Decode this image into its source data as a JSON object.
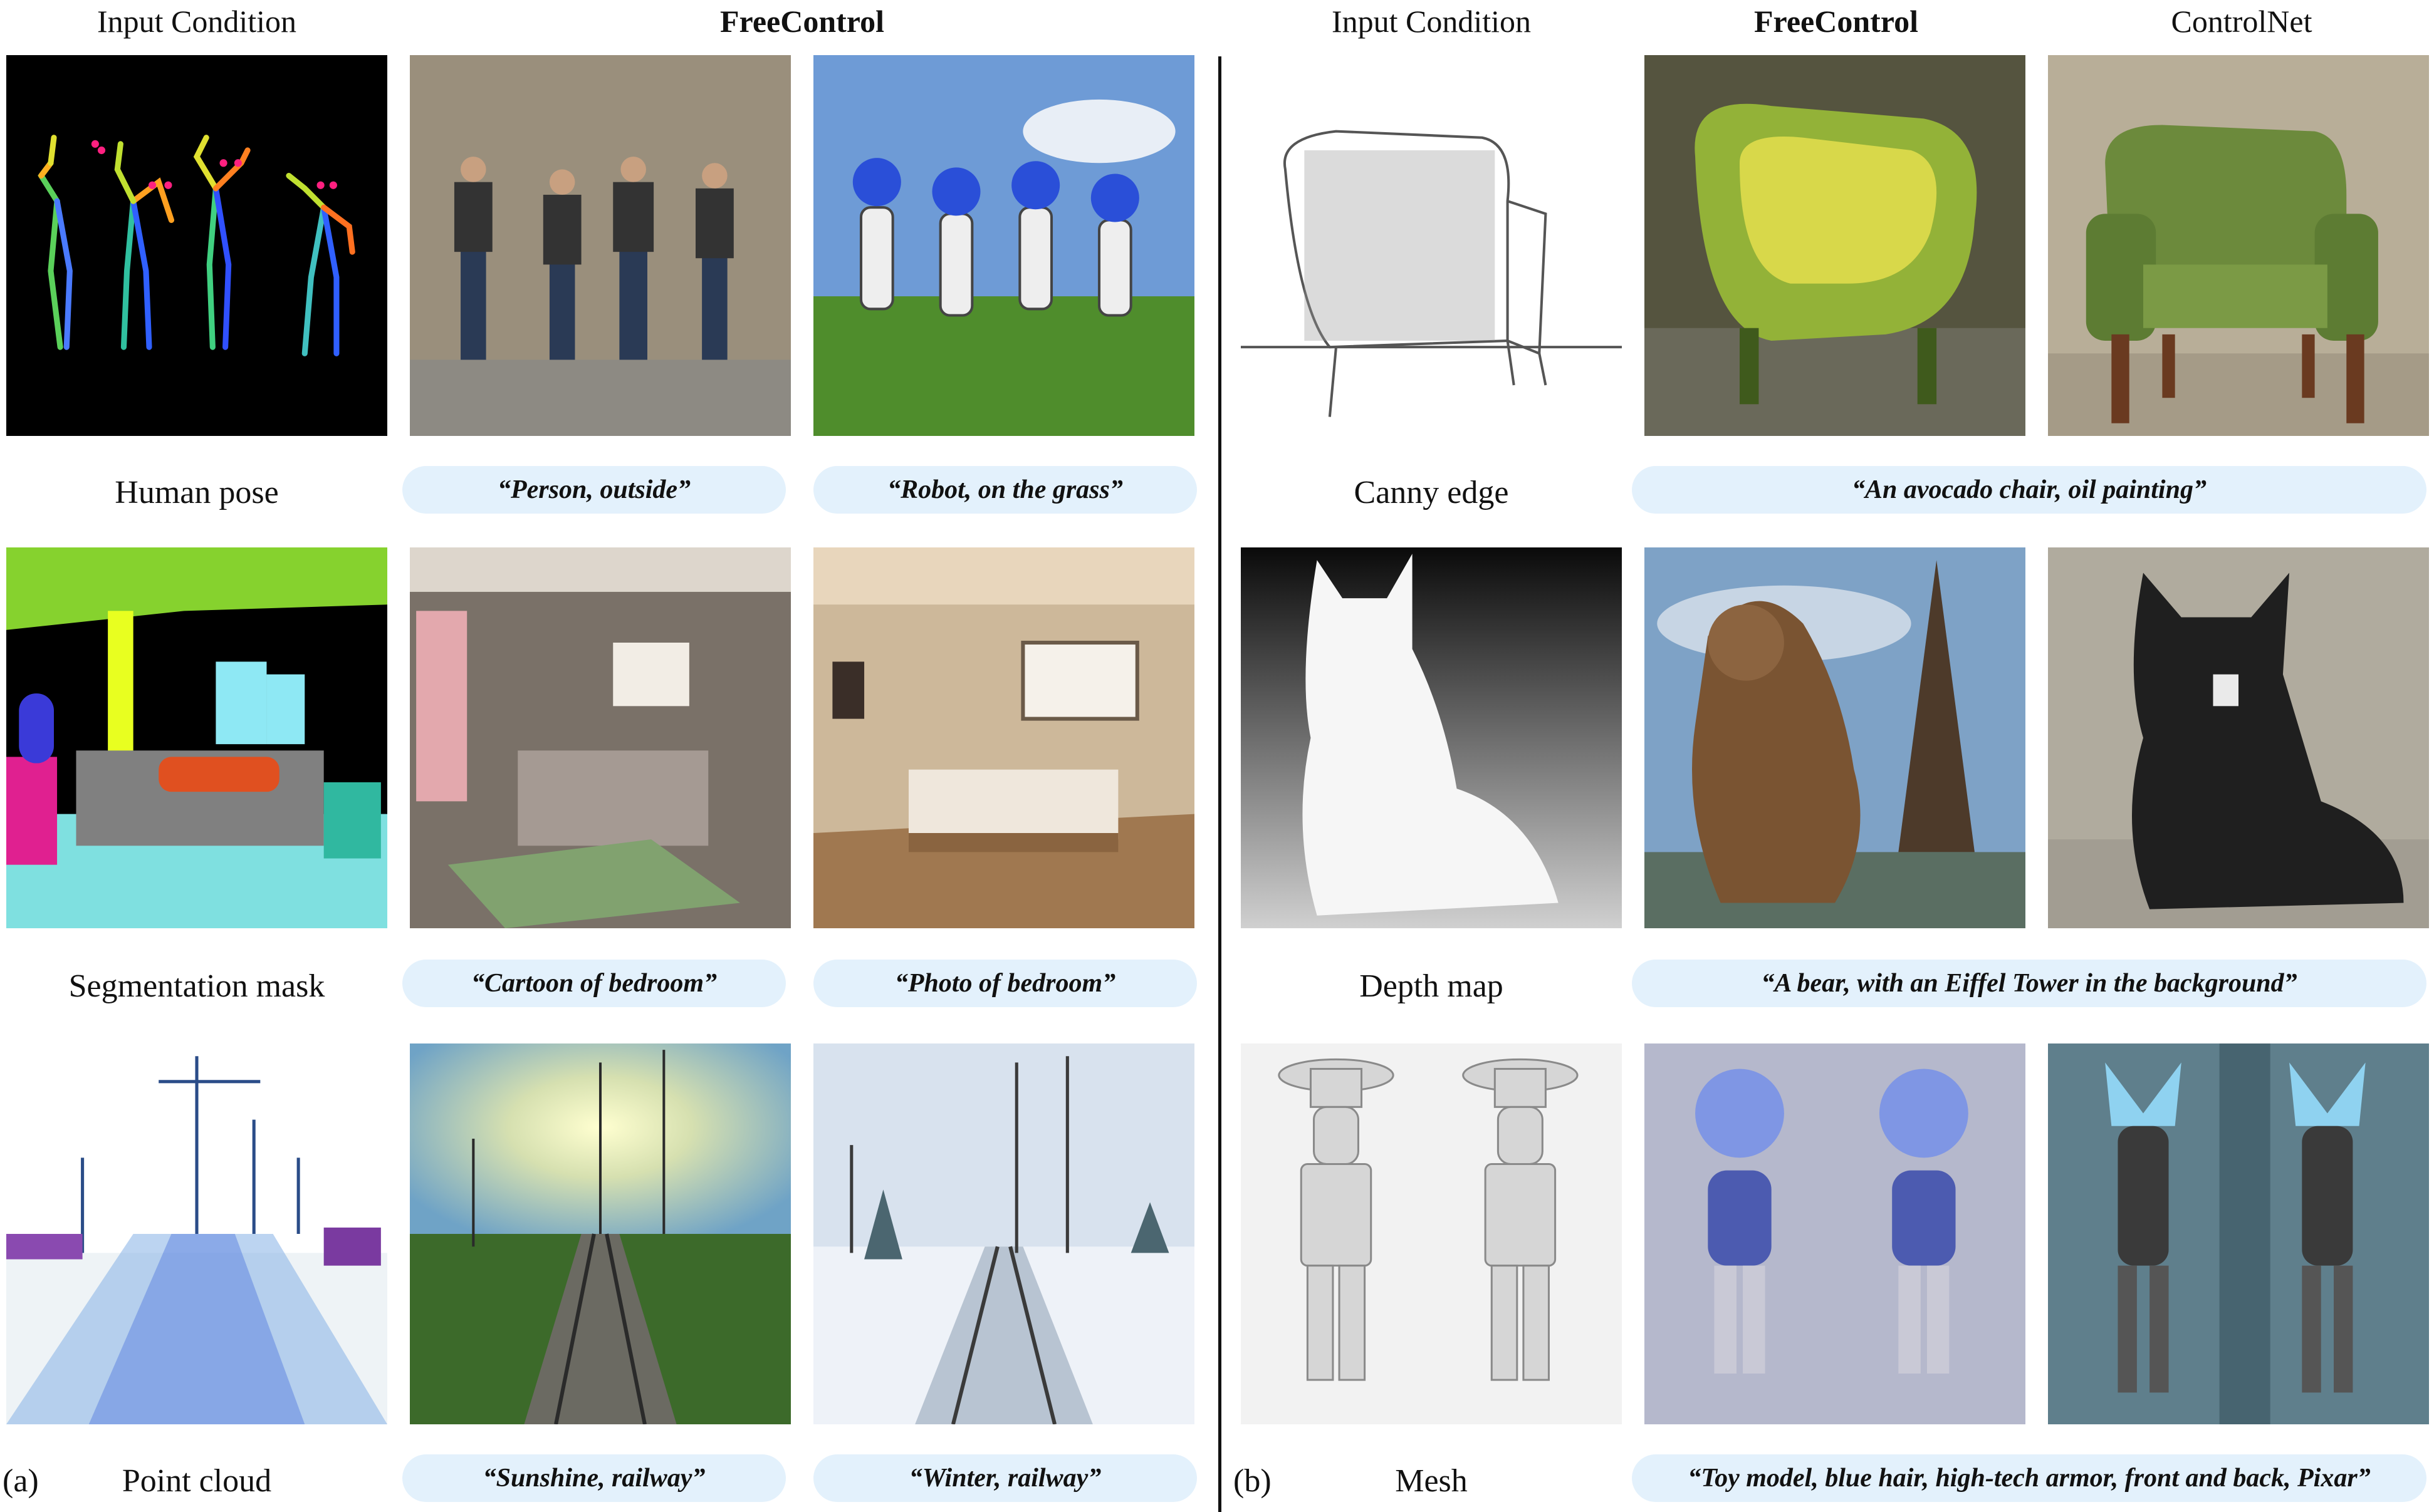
{
  "panel_a": {
    "tag": "(a)",
    "headers": {
      "input": "Input Condition",
      "method": "FreeControl"
    },
    "rows": [
      {
        "condition": "Human pose",
        "prompts": [
          "“Person, outside”",
          "“Robot, on the grass”"
        ]
      },
      {
        "condition": "Segmentation mask",
        "prompts": [
          "“Cartoon of bedroom”",
          "“Photo of bedroom”"
        ]
      },
      {
        "condition": "Point cloud",
        "prompts": [
          "“Sunshine, railway”",
          "“Winter, railway”"
        ]
      }
    ]
  },
  "panel_b": {
    "tag": "(b)",
    "headers": {
      "input": "Input Condition",
      "method": "FreeControl",
      "baseline": "ControlNet"
    },
    "rows": [
      {
        "condition": "Canny edge",
        "prompt": "“An avocado chair, oil painting”"
      },
      {
        "condition": "Depth map",
        "prompt": "“A bear, with an Eiffel Tower in the background”"
      },
      {
        "condition": "Mesh",
        "prompt": "“Toy model, blue hair, high-tech armor, front and back, Pixar”"
      }
    ]
  },
  "colors": {
    "pill": "#e3f1fc",
    "divider": "#111111"
  }
}
